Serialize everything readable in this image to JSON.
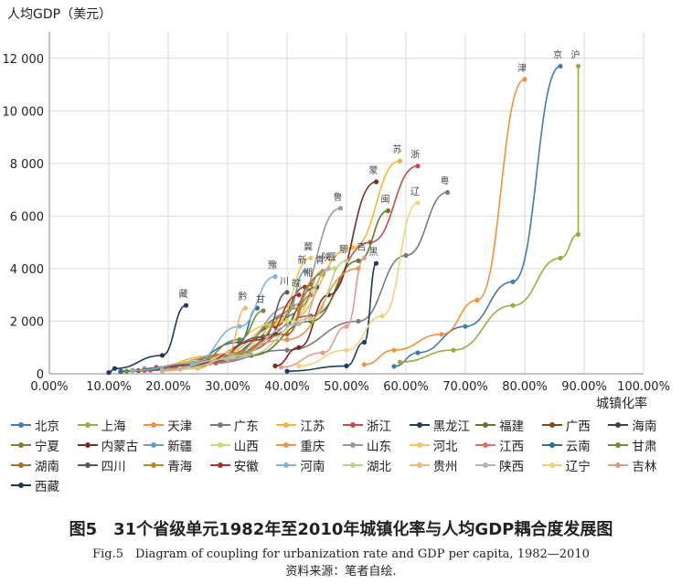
{
  "chart_data": {
    "type": "line",
    "ylabel": "人均GDP（美元）",
    "xlabel": "城镇化率",
    "xlim": [
      0,
      100
    ],
    "ylim": [
      0,
      13000
    ],
    "xticks": [
      "0.00%",
      "10.00%",
      "20.00%",
      "30.00%",
      "40.00%",
      "50.00%",
      "60.00%",
      "70.00%",
      "80.00%",
      "90.00%",
      "100.00%"
    ],
    "yticks": [
      "0",
      "2 000",
      "4 000",
      "6 000",
      "8 000",
      "10 000",
      "12 000"
    ],
    "grid": true,
    "legend_position": "bottom",
    "series": [
      {
        "name": "北京",
        "label": "京",
        "color": "#3e7cb1",
        "points": [
          [
            58,
            280
          ],
          [
            62,
            800
          ],
          [
            70,
            1800
          ],
          [
            78,
            3500
          ],
          [
            86,
            11700
          ]
        ]
      },
      {
        "name": "上海",
        "label": "沪",
        "color": "#9aad3c",
        "points": [
          [
            59,
            450
          ],
          [
            68,
            900
          ],
          [
            78,
            2600
          ],
          [
            86,
            4400
          ],
          [
            89,
            5300
          ],
          [
            89,
            11700
          ]
        ]
      },
      {
        "name": "天津",
        "label": "津",
        "color": "#f0923a",
        "points": [
          [
            53,
            350
          ],
          [
            58,
            900
          ],
          [
            66,
            1500
          ],
          [
            72,
            2800
          ],
          [
            80,
            11200
          ]
        ]
      },
      {
        "name": "广东",
        "label": "粤",
        "color": "#7a7a7a",
        "points": [
          [
            27,
            400
          ],
          [
            40,
            900
          ],
          [
            52,
            2000
          ],
          [
            60,
            4500
          ],
          [
            67,
            6900
          ]
        ]
      },
      {
        "name": "江苏",
        "label": "苏",
        "color": "#f5b731",
        "points": [
          [
            16,
            200
          ],
          [
            28,
            700
          ],
          [
            40,
            2000
          ],
          [
            51,
            4800
          ],
          [
            59,
            8100
          ]
        ]
      },
      {
        "name": "浙江",
        "label": "浙",
        "color": "#c0504d",
        "points": [
          [
            18,
            250
          ],
          [
            32,
            800
          ],
          [
            44,
            2200
          ],
          [
            54,
            5000
          ],
          [
            62,
            7900
          ]
        ]
      },
      {
        "name": "黑龙江",
        "label": "黑",
        "color": "#1f3d5c",
        "points": [
          [
            40,
            100
          ],
          [
            50,
            300
          ],
          [
            53,
            1200
          ],
          [
            55,
            4200
          ]
        ]
      },
      {
        "name": "福建",
        "label": "闽",
        "color": "#5e7b2c",
        "points": [
          [
            22,
            200
          ],
          [
            34,
            700
          ],
          [
            44,
            2000
          ],
          [
            52,
            4300
          ],
          [
            57,
            6200
          ]
        ]
      },
      {
        "name": "广西",
        "label": "",
        "color": "#8b4513",
        "points": [
          [
            12,
            80
          ],
          [
            20,
            200
          ],
          [
            30,
            600
          ],
          [
            38,
            1800
          ],
          [
            43,
            3300
          ]
        ]
      },
      {
        "name": "海南",
        "label": "",
        "color": "#404040",
        "points": [
          [
            17,
            150
          ],
          [
            28,
            500
          ],
          [
            38,
            1500
          ],
          [
            45,
            3300
          ]
        ]
      },
      {
        "name": "宁夏",
        "label": "",
        "color": "#8c7a2e",
        "points": [
          [
            19,
            180
          ],
          [
            30,
            700
          ],
          [
            40,
            2200
          ],
          [
            46,
            3800
          ]
        ]
      },
      {
        "name": "内蒙古",
        "label": "蒙",
        "color": "#7b2a1e",
        "points": [
          [
            38,
            300
          ],
          [
            42,
            1000
          ],
          [
            47,
            3000
          ],
          [
            55,
            7300
          ]
        ]
      },
      {
        "name": "新疆",
        "label": "新",
        "color": "#6a9ec2",
        "points": [
          [
            22,
            180
          ],
          [
            32,
            700
          ],
          [
            40,
            2300
          ],
          [
            43,
            3900
          ]
        ]
      },
      {
        "name": "山西",
        "label": "晋",
        "color": "#c9d96e",
        "points": [
          [
            20,
            180
          ],
          [
            30,
            600
          ],
          [
            40,
            2000
          ],
          [
            48,
            4000
          ]
        ]
      },
      {
        "name": "重庆",
        "label": "",
        "color": "#e8954a",
        "points": [
          [
            16,
            120
          ],
          [
            27,
            400
          ],
          [
            40,
            1300
          ],
          [
            52,
            4000
          ]
        ]
      },
      {
        "name": "山东",
        "label": "鲁",
        "color": "#9a9a9a",
        "points": [
          [
            16,
            200
          ],
          [
            30,
            700
          ],
          [
            41,
            2600
          ],
          [
            49,
            6300
          ]
        ]
      },
      {
        "name": "河北",
        "label": "冀",
        "color": "#f7c659",
        "points": [
          [
            14,
            150
          ],
          [
            26,
            500
          ],
          [
            38,
            1900
          ],
          [
            44,
            4400
          ]
        ]
      },
      {
        "name": "江西",
        "label": "",
        "color": "#d9736a",
        "points": [
          [
            17,
            130
          ],
          [
            28,
            400
          ],
          [
            40,
            1500
          ],
          [
            44,
            3000
          ]
        ]
      },
      {
        "name": "云南",
        "label": "",
        "color": "#2e6f8e",
        "points": [
          [
            12,
            100
          ],
          [
            22,
            300
          ],
          [
            32,
            1200
          ],
          [
            35,
            2500
          ]
        ]
      },
      {
        "name": "甘肃",
        "label": "甘",
        "color": "#6b8e3a",
        "points": [
          [
            13,
            100
          ],
          [
            24,
            300
          ],
          [
            32,
            1300
          ],
          [
            36,
            2400
          ]
        ]
      },
      {
        "name": "湖南",
        "label": "湘",
        "color": "#b26b2e",
        "points": [
          [
            16,
            130
          ],
          [
            28,
            450
          ],
          [
            40,
            1500
          ],
          [
            44,
            3400
          ]
        ]
      },
      {
        "name": "四川",
        "label": "川",
        "color": "#5a5a5a",
        "points": [
          [
            15,
            120
          ],
          [
            26,
            400
          ],
          [
            36,
            1400
          ],
          [
            40,
            3100
          ]
        ]
      },
      {
        "name": "青海",
        "label": "青",
        "color": "#b8862e",
        "points": [
          [
            20,
            200
          ],
          [
            32,
            800
          ],
          [
            42,
            2500
          ],
          [
            46,
            3900
          ]
        ]
      },
      {
        "name": "安徽",
        "label": "皖",
        "color": "#a83232",
        "points": [
          [
            14,
            120
          ],
          [
            24,
            350
          ],
          [
            36,
            1300
          ],
          [
            42,
            3000
          ]
        ]
      },
      {
        "name": "河南",
        "label": "豫",
        "color": "#7fb2d9",
        "points": [
          [
            14,
            120
          ],
          [
            24,
            400
          ],
          [
            32,
            1800
          ],
          [
            38,
            3700
          ]
        ]
      },
      {
        "name": "湖北",
        "label": "鄂",
        "color": "#b8d18a",
        "points": [
          [
            22,
            200
          ],
          [
            33,
            700
          ],
          [
            44,
            2100
          ],
          [
            50,
            4300
          ]
        ]
      },
      {
        "name": "贵州",
        "label": "黔",
        "color": "#f2b87a",
        "points": [
          [
            19,
            100
          ],
          [
            25,
            200
          ],
          [
            30,
            800
          ],
          [
            33,
            2500
          ]
        ]
      },
      {
        "name": "陕西",
        "label": "陕",
        "color": "#b3b3b3",
        "points": [
          [
            19,
            150
          ],
          [
            30,
            550
          ],
          [
            42,
            1900
          ],
          [
            47,
            4000
          ]
        ]
      },
      {
        "name": "辽宁",
        "label": "辽",
        "color": "#f4d27a",
        "points": [
          [
            42,
            300
          ],
          [
            50,
            900
          ],
          [
            56,
            2200
          ],
          [
            62,
            6500
          ]
        ]
      },
      {
        "name": "吉林",
        "label": "吉",
        "color": "#e39a8a",
        "points": [
          [
            39,
            250
          ],
          [
            46,
            800
          ],
          [
            50,
            1800
          ],
          [
            53,
            4400
          ]
        ]
      },
      {
        "name": "西藏",
        "label": "藏",
        "color": "#1c3a57",
        "points": [
          [
            10,
            50
          ],
          [
            11,
            200
          ],
          [
            19,
            700
          ],
          [
            23,
            2600
          ]
        ]
      }
    ]
  },
  "caption": {
    "title_cn": "图5　31个省级单元1982年至2010年城镇化率与人均GDP耦合度发展图",
    "title_en": "Fig.5　Diagram of coupling for urbanization rate and GDP per capita, 1982—2010",
    "source": "资料来源：笔者自绘."
  }
}
